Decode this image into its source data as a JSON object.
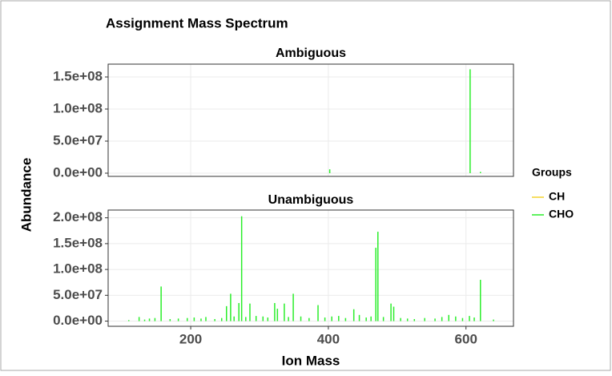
{
  "title": "Assignment Mass Spectrum",
  "x_label": "Ion Mass",
  "y_label": "Abundance",
  "legend_title": "Groups",
  "legend": [
    {
      "name": "CH",
      "color": "#f2d22e"
    },
    {
      "name": "CHO",
      "color": "#2bee2b"
    }
  ],
  "chart_data": [
    {
      "type": "bar",
      "title": "Ambiguous",
      "xlim": [
        80,
        669
      ],
      "xticks": [
        200,
        400,
        600
      ],
      "ylim": [
        -5000000,
        170000000
      ],
      "yticks": [
        {
          "value": 0,
          "label": "0.0e+00"
        },
        {
          "value": 50000000,
          "label": "5.0e+07"
        },
        {
          "value": 100000000,
          "label": "1.0e+08"
        },
        {
          "value": 150000000,
          "label": "1.5e+08"
        }
      ],
      "grid": true,
      "series": [
        {
          "color": "#2bee2b",
          "x": [
            402,
            606,
            621
          ],
          "values": [
            6000000,
            162000000,
            2000000
          ]
        }
      ]
    },
    {
      "type": "bar",
      "title": "Unambiguous",
      "xlim": [
        80,
        669
      ],
      "xticks": [
        200,
        400,
        600
      ],
      "ylim": [
        -10000000,
        215000000
      ],
      "yticks": [
        {
          "value": 0,
          "label": "0.0e+00"
        },
        {
          "value": 50000000,
          "label": "5.0e+07"
        },
        {
          "value": 100000000,
          "label": "1.0e+08"
        },
        {
          "value": 150000000,
          "label": "1.5e+08"
        },
        {
          "value": 200000000,
          "label": "2.0e+08"
        }
      ],
      "grid": true,
      "series": [
        {
          "color": "#2bee2b",
          "x": [
            110,
            125,
            133,
            140,
            148,
            157,
            170,
            182,
            195,
            205,
            215,
            222,
            235,
            245,
            252,
            258,
            263,
            270,
            274,
            280,
            286,
            295,
            305,
            312,
            322,
            326,
            336,
            342,
            349,
            360,
            372,
            385,
            395,
            405,
            415,
            425,
            437,
            445,
            455,
            462,
            469,
            472,
            480,
            491,
            495,
            505,
            515,
            525,
            540,
            555,
            565,
            575,
            585,
            595,
            605,
            612,
            621,
            640
          ],
          "values": [
            2000000,
            8000000,
            3000000,
            5000000,
            6000000,
            67000000,
            4000000,
            5000000,
            6000000,
            7000000,
            5000000,
            8000000,
            4000000,
            6000000,
            29000000,
            53000000,
            9000000,
            35000000,
            203000000,
            8000000,
            34000000,
            10000000,
            9000000,
            7000000,
            35000000,
            24000000,
            34000000,
            8000000,
            53000000,
            9000000,
            6000000,
            31000000,
            7000000,
            9000000,
            10000000,
            6000000,
            23000000,
            12000000,
            7000000,
            9000000,
            142000000,
            173000000,
            8000000,
            34000000,
            28000000,
            6000000,
            5000000,
            4000000,
            6000000,
            5000000,
            8000000,
            12000000,
            9000000,
            6000000,
            10000000,
            7000000,
            80000000,
            3000000
          ]
        }
      ]
    }
  ]
}
